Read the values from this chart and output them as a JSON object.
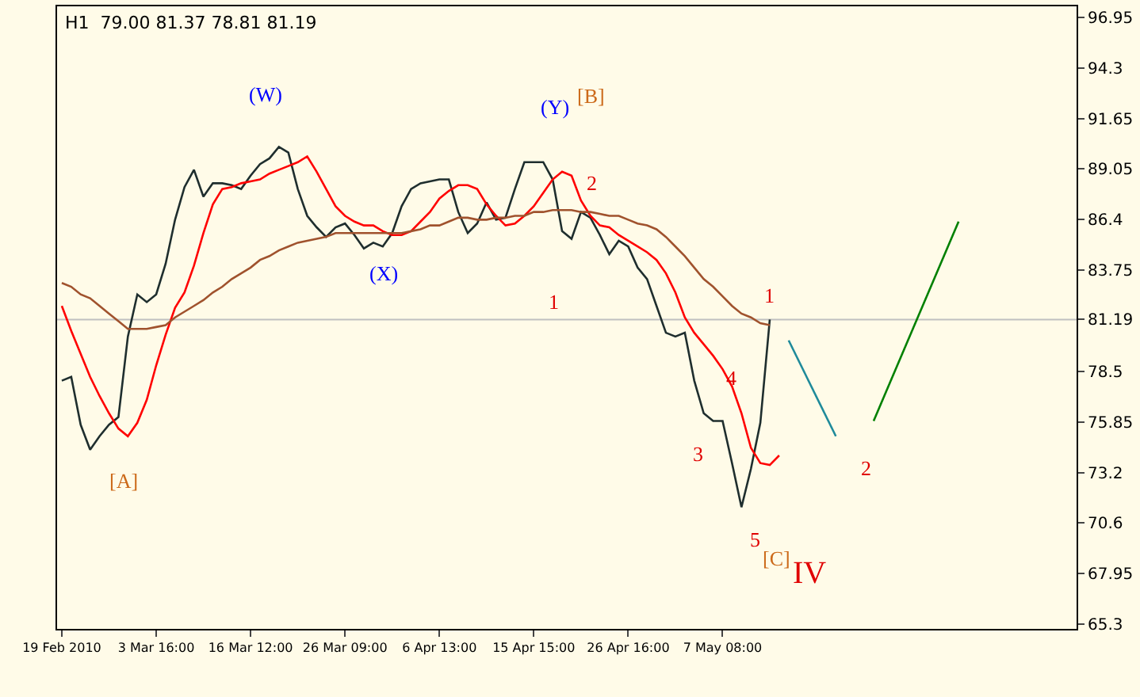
{
  "chart_data": {
    "type": "line",
    "title": "H1  79.00 81.37 78.81 81.19",
    "categories": [
      "19 Feb 2010",
      null,
      null,
      null,
      null,
      null,
      null,
      null,
      null,
      null,
      "3 Mar 16:00",
      null,
      null,
      null,
      null,
      null,
      null,
      null,
      null,
      null,
      "16 Mar 12:00",
      null,
      null,
      null,
      null,
      null,
      null,
      null,
      null,
      null,
      "26 Mar 09:00",
      null,
      null,
      null,
      null,
      null,
      null,
      null,
      null,
      null,
      "6 Apr 13:00",
      null,
      null,
      null,
      null,
      null,
      null,
      null,
      null,
      null,
      "15 Apr 15:00",
      null,
      null,
      null,
      null,
      null,
      null,
      null,
      null,
      null,
      "26 Apr 16:00",
      null,
      null,
      null,
      null,
      null,
      null,
      null,
      null,
      null,
      "7 May 08:00",
      null,
      null,
      null,
      null,
      null,
      null,
      null,
      null,
      null,
      null,
      null,
      null,
      null,
      null,
      null,
      null,
      null,
      null,
      null,
      null,
      null,
      null,
      null,
      null,
      null,
      null,
      null,
      null,
      null,
      null,
      null,
      null,
      null,
      null,
      null,
      null,
      null
    ],
    "series": [
      {
        "color": "#1f2e2e",
        "values": [
          78.0,
          78.2,
          75.7,
          74.4,
          75.1,
          75.7,
          76.1,
          80.3,
          82.5,
          82.1,
          82.5,
          84.1,
          86.4,
          88.1,
          89.0,
          87.6,
          88.3,
          88.3,
          88.2,
          88.0,
          88.7,
          89.3,
          89.6,
          90.2,
          89.9,
          88.0,
          86.6,
          86.0,
          85.5,
          86.0,
          86.2,
          85.6,
          84.9,
          85.2,
          85.0,
          85.7,
          87.1,
          88.0,
          88.3,
          88.4,
          88.5,
          88.5,
          86.8,
          85.7,
          86.2,
          87.3,
          86.4,
          86.5,
          88.0,
          89.4,
          89.4,
          89.4,
          88.5,
          85.8,
          85.4,
          86.8,
          86.5,
          85.6,
          84.6,
          85.3,
          85.0,
          83.9,
          83.3,
          81.9,
          80.5,
          80.3,
          80.5,
          78.0,
          76.3,
          75.9,
          75.9,
          73.7,
          71.4,
          73.4,
          75.8,
          81.19,
          null,
          null,
          null,
          null,
          null,
          null,
          null,
          null,
          null,
          null,
          null,
          null,
          null,
          null,
          null,
          null,
          null,
          null,
          null,
          null,
          null,
          null,
          null,
          null,
          null,
          null,
          null,
          null,
          null,
          null,
          null,
          null
        ]
      },
      {
        "color": "#ff0000",
        "values": [
          81.9,
          80.6,
          79.4,
          78.2,
          77.2,
          76.3,
          75.5,
          75.1,
          75.8,
          77.0,
          78.8,
          80.4,
          81.8,
          82.6,
          84.0,
          85.7,
          87.2,
          88.0,
          88.1,
          88.3,
          88.4,
          88.5,
          88.8,
          89.0,
          89.2,
          89.4,
          89.7,
          88.9,
          88.0,
          87.1,
          86.6,
          86.3,
          86.1,
          86.1,
          85.8,
          85.6,
          85.6,
          85.8,
          86.3,
          86.8,
          87.5,
          87.9,
          88.2,
          88.2,
          88.0,
          87.2,
          86.6,
          86.1,
          86.2,
          86.6,
          87.1,
          87.8,
          88.5,
          88.9,
          88.7,
          87.4,
          86.6,
          86.1,
          86.0,
          85.6,
          85.3,
          85.0,
          84.7,
          84.3,
          83.6,
          82.6,
          81.3,
          80.5,
          79.9,
          79.3,
          78.6,
          77.7,
          76.3,
          74.5,
          73.7,
          73.6,
          74.1,
          null,
          null,
          null,
          null,
          null,
          null,
          null,
          null,
          null,
          null,
          null,
          null,
          null,
          null,
          null,
          null,
          null,
          null,
          null,
          null,
          null,
          null,
          null,
          null,
          null,
          null,
          null,
          null,
          null,
          null,
          null
        ]
      },
      {
        "color": "#a0522d",
        "values": [
          83.1,
          82.9,
          82.5,
          82.3,
          81.9,
          81.5,
          81.1,
          80.7,
          80.7,
          80.7,
          80.8,
          80.9,
          81.3,
          81.6,
          81.9,
          82.2,
          82.6,
          82.9,
          83.3,
          83.6,
          83.9,
          84.3,
          84.5,
          84.8,
          85.0,
          85.2,
          85.3,
          85.4,
          85.5,
          85.7,
          85.7,
          85.7,
          85.7,
          85.7,
          85.7,
          85.7,
          85.7,
          85.8,
          85.9,
          86.1,
          86.1,
          86.3,
          86.5,
          86.5,
          86.4,
          86.4,
          86.5,
          86.5,
          86.6,
          86.6,
          86.8,
          86.8,
          86.9,
          86.9,
          86.9,
          86.8,
          86.8,
          86.7,
          86.6,
          86.6,
          86.4,
          86.2,
          86.1,
          85.9,
          85.5,
          85.0,
          84.5,
          83.9,
          83.3,
          82.9,
          82.4,
          81.9,
          81.5,
          81.3,
          81.0,
          80.9,
          null,
          null,
          null,
          null,
          null,
          null,
          null,
          null,
          null,
          null,
          null,
          null,
          null,
          null,
          null,
          null,
          null,
          null,
          null,
          null,
          null,
          null,
          null,
          null,
          null,
          null,
          null,
          null,
          null,
          null,
          null,
          null
        ]
      },
      {
        "color": "#1f8a9a",
        "values": [
          null,
          null,
          null,
          null,
          null,
          null,
          null,
          null,
          null,
          null,
          null,
          null,
          null,
          null,
          null,
          null,
          null,
          null,
          null,
          null,
          null,
          null,
          null,
          null,
          null,
          null,
          null,
          null,
          null,
          null,
          null,
          null,
          null,
          null,
          null,
          null,
          null,
          null,
          null,
          null,
          null,
          null,
          null,
          null,
          null,
          null,
          null,
          null,
          null,
          null,
          null,
          null,
          null,
          null,
          null,
          null,
          null,
          null,
          null,
          null,
          null,
          null,
          null,
          null,
          null,
          null,
          null,
          null,
          null,
          null,
          null,
          null,
          null,
          null,
          null,
          null,
          null,
          80.1,
          null,
          null,
          null,
          null,
          75.1,
          null,
          null,
          null,
          null,
          null,
          null,
          null,
          null,
          null,
          null,
          null,
          null,
          null,
          null,
          null,
          null,
          null,
          null,
          null,
          null,
          null,
          null,
          null,
          null,
          null
        ]
      },
      {
        "color": "#008000",
        "values": [
          null,
          null,
          null,
          null,
          null,
          null,
          null,
          null,
          null,
          null,
          null,
          null,
          null,
          null,
          null,
          null,
          null,
          null,
          null,
          null,
          null,
          null,
          null,
          null,
          null,
          null,
          null,
          null,
          null,
          null,
          null,
          null,
          null,
          null,
          null,
          null,
          null,
          null,
          null,
          null,
          null,
          null,
          null,
          null,
          null,
          null,
          null,
          null,
          null,
          null,
          null,
          null,
          null,
          null,
          null,
          null,
          null,
          null,
          null,
          null,
          null,
          null,
          null,
          null,
          null,
          null,
          null,
          null,
          null,
          null,
          null,
          null,
          null,
          null,
          null,
          null,
          null,
          null,
          null,
          null,
          null,
          null,
          null,
          null,
          null,
          null,
          75.9,
          null,
          null,
          null,
          null,
          null,
          null,
          null,
          null,
          86.3,
          null,
          null,
          null,
          null,
          null,
          null,
          null,
          null,
          null,
          null,
          null,
          null
        ]
      }
    ],
    "ylim": [
      65.05,
      97.53
    ],
    "yticks": [
      96.95,
      94.3,
      91.65,
      89.05,
      86.4,
      83.75,
      81.19,
      78.5,
      75.85,
      73.2,
      70.6,
      67.95,
      65.3
    ],
    "ref_lines": [
      {
        "axis": "y",
        "value": 81.19,
        "color": "#c0c0c0"
      }
    ],
    "annotations": [
      "(W)",
      "(X)",
      "(Y)",
      "[B]",
      "[A]",
      "1",
      "2",
      "1",
      "3",
      "4",
      "5",
      "[C]",
      "IV",
      "2"
    ],
    "grid": false,
    "marker": "none",
    "line_style": "solid"
  }
}
